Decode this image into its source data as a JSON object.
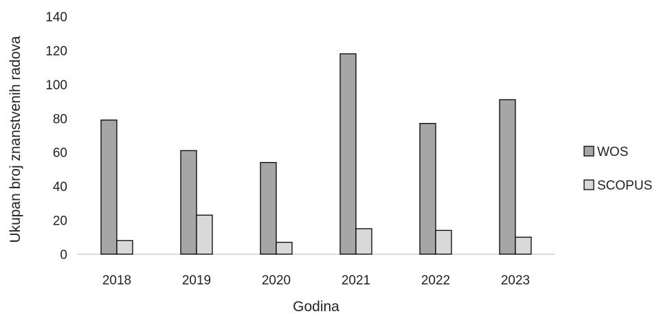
{
  "chart_data": {
    "type": "bar",
    "title": "",
    "xlabel": "Godina",
    "ylabel": "Ukupan broj znanstvenih radova",
    "categories": [
      "2018",
      "2019",
      "2020",
      "2021",
      "2022",
      "2023"
    ],
    "series": [
      {
        "name": "WOS",
        "values": [
          79,
          61,
          54,
          118,
          77,
          91
        ],
        "color": "#a6a6a6"
      },
      {
        "name": "SCOPUS",
        "values": [
          8,
          23,
          7,
          15,
          14,
          10
        ],
        "color": "#d9d9d9"
      }
    ],
    "ylim": [
      0,
      140
    ],
    "yticks": [
      0,
      20,
      40,
      60,
      80,
      100,
      120,
      140
    ],
    "grid": false,
    "legend_position": "right"
  }
}
